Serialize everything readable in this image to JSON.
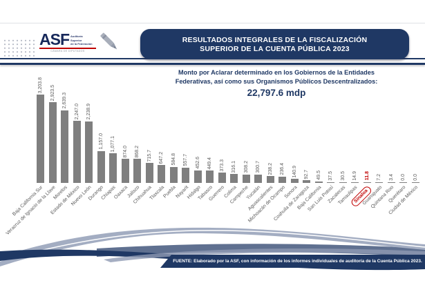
{
  "header": {
    "logo": {
      "asf": "ASF",
      "side1": "Auditoría",
      "side2": "Superior",
      "side3": "de la Federación",
      "sub": "CÁMARA DE DIPUTADOS"
    },
    "title_line1": "RESULTADOS INTEGRALES DE LA FISCALIZACIÓN",
    "title_line2": "SUPERIOR DE LA CUENTA PÚBLICA 2023"
  },
  "subtitle": {
    "line1": "Monto por Aclarar determinado en los Gobiernos de la Entidades",
    "line2": "Federativas, así como sus Organismos Públicos Descentralizados:",
    "total": "22,797.6 mdp"
  },
  "chart_data": {
    "type": "bar",
    "title": "Monto por Aclarar determinado en los Gobiernos de la Entidades Federativas, así como sus Organismos Públicos Descentralizados: 22,797.6 mdp",
    "categories": [
      "Baja California Sur",
      "Veracruz de Ignacio de la Llave",
      "Morelos",
      "Estado de México",
      "Nuevo León",
      "Durango",
      "Chiapas",
      "Oaxaca",
      "Jalisco",
      "Chihuahua",
      "Tlaxcala",
      "Puebla",
      "Nayarit",
      "Hidalgo",
      "Tabasco",
      "Guerrero",
      "Colima",
      "Campeche",
      "Yucatán",
      "Aguascalientes",
      "Michoacán de Ocampo",
      "Sonora",
      "Coahuila de Zaragoza",
      "Baja California",
      "San Luis Potosí",
      "Zacatecas",
      "Tamaulipas",
      "Sinaloa",
      "Guanajuato",
      "Quintana Roo",
      "Querétaro",
      "Ciudad de México"
    ],
    "values": [
      3203.8,
      2923.5,
      2639.3,
      2247.0,
      2238.9,
      1157.0,
      1077.1,
      874.0,
      868.2,
      715.7,
      647.2,
      584.8,
      557.7,
      452.6,
      449.4,
      373.3,
      316.1,
      308.2,
      300.7,
      238.2,
      236.4,
      140.9,
      92.7,
      49.5,
      37.5,
      30.5,
      14.9,
      11.8,
      7.2,
      3.4,
      0.0,
      0.0
    ],
    "value_labels": [
      "3,203.8",
      "2,923.5",
      "2,639.3",
      "2,247.0",
      "2,238.9",
      "1,157.0",
      "1,077.1",
      "874.0",
      "868.2",
      "715.7",
      "647.2",
      "584.8",
      "557.7",
      "452.6",
      "449.4",
      "373.3",
      "316.1",
      "308.2",
      "300.7",
      "238.2",
      "236.4",
      "140.9",
      "92.7",
      "49.5",
      "37.5",
      "30.5",
      "14.9",
      "11.8",
      "7.2",
      "3.4",
      "0.0",
      "0.0"
    ],
    "highlight": {
      "category": "Sinaloa",
      "value": 11.8
    },
    "unit": "mdp",
    "ylim": [
      0,
      3400
    ],
    "grid": false,
    "legend": false,
    "bar_color": "#7f7f7f",
    "label_color": "#595959",
    "highlight_color": "#c00000"
  },
  "footer": {
    "text": "FUENTE: Elaborado por la ASF, con información de los informes individuales de auditoría de la Cuenta Pública 2023."
  },
  "colors": {
    "navy": "#1f3864",
    "bar_gray": "#7f7f7f",
    "label_gray": "#595959",
    "highlight_red": "#c00000"
  }
}
